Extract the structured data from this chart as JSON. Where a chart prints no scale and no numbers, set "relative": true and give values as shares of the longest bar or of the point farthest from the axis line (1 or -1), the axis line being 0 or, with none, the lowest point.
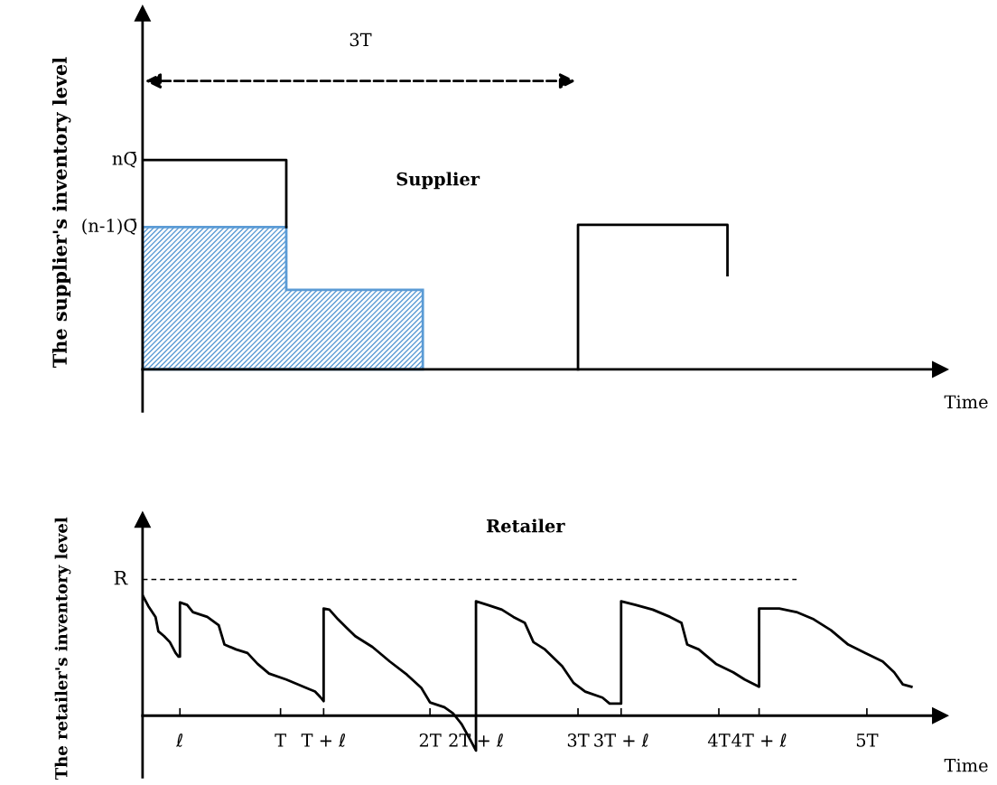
{
  "chart_data": [
    {
      "type": "line",
      "title": "Supplier",
      "ylabel": "The supplier's inventory level",
      "xlabel": "Time",
      "relative": true,
      "tick_labels": false,
      "xlim": [
        0,
        5.55
      ],
      "xticks": [
        {
          "value": 0.26,
          "label": null
        },
        {
          "value": 0.96,
          "label": null
        },
        {
          "value": 1.26,
          "label": null
        },
        {
          "value": 2.0,
          "label": null
        },
        {
          "value": 2.32,
          "label": null
        },
        {
          "value": 3.03,
          "label": null
        },
        {
          "value": 3.33,
          "label": null
        },
        {
          "value": 4.01,
          "label": null
        },
        {
          "value": 4.29,
          "label": null
        },
        {
          "value": 5.04,
          "label": null
        }
      ],
      "annotations": [
        "3T",
        {
          "text": "nQ̄",
          "x": 0,
          "y": 1.0
        },
        {
          "text": "(n-1)Q̄",
          "x": 0,
          "y": 0.68
        }
      ],
      "series": [
        {
          "type": "area",
          "color": "#5b9bd5",
          "x": [
            0,
            1,
            1,
            1.95,
            1.95
          ],
          "values": [
            0.68,
            0.68,
            0.38,
            0.38,
            0
          ]
        },
        {
          "type": "line",
          "color": "#000000",
          "x": [
            0,
            1,
            1
          ],
          "values": [
            1,
            1,
            0.68
          ]
        },
        {
          "type": "line",
          "color": "#000000",
          "x": [
            3.03,
            3.03,
            4.07,
            4.07
          ],
          "values": [
            0,
            0.69,
            0.69,
            0.45
          ]
        }
      ]
    },
    {
      "type": "line",
      "title": "Retailer",
      "ylabel": "The retailer's inventory level",
      "xlabel": "Time",
      "relative": true,
      "xlim": [
        0,
        5.55
      ],
      "xticks": [
        {
          "value": 0.26,
          "label": "ℓ"
        },
        {
          "value": 0.96,
          "label": "T"
        },
        {
          "value": 1.26,
          "label": "T + ℓ"
        },
        {
          "value": 2.0,
          "label": "2T"
        },
        {
          "value": 2.32,
          "label": "2T + ℓ"
        },
        {
          "value": 3.03,
          "label": "3T"
        },
        {
          "value": 3.33,
          "label": "3T + ℓ"
        },
        {
          "value": 4.01,
          "label": "4T"
        },
        {
          "value": 4.29,
          "label": "4T + ℓ"
        },
        {
          "value": 5.04,
          "label": "5T"
        }
      ],
      "ref_lines": [
        {
          "axis": "y",
          "value": 1.13,
          "label": "R",
          "color": "#000000",
          "line_style": "dashed"
        }
      ],
      "series": [
        {
          "color": "#000000",
          "x": [
            0,
            0.04,
            0.09,
            0.11,
            0.15,
            0.19,
            0.23,
            0.25,
            0.26,
            0.26,
            0.31,
            0.35,
            0.45,
            0.53,
            0.57,
            0.65,
            0.73,
            0.8,
            0.88,
            1.0,
            1.12,
            1.2,
            1.24,
            1.26,
            1.26,
            1.3,
            1.36,
            1.42,
            1.48,
            1.6,
            1.72,
            1.84,
            1.94,
            2.0,
            2.1,
            2.16,
            2.22,
            2.28,
            2.32,
            2.32,
            2.4,
            2.5,
            2.58,
            2.66,
            2.72,
            2.8,
            2.92,
            3.0,
            3.08,
            3.2,
            3.25,
            3.33,
            3.33,
            3.43,
            3.55,
            3.67,
            3.75,
            3.79,
            3.87,
            3.99,
            4.11,
            4.19,
            4.29,
            4.29,
            4.43,
            4.55,
            4.67,
            4.79,
            4.91,
            5.03,
            5.15,
            5.23,
            5.29,
            5.35
          ],
          "values": [
            1.0,
            0.91,
            0.82,
            0.7,
            0.66,
            0.61,
            0.52,
            0.49,
            0.49,
            0.94,
            0.92,
            0.86,
            0.82,
            0.75,
            0.59,
            0.55,
            0.52,
            0.43,
            0.35,
            0.3,
            0.24,
            0.2,
            0.15,
            0.12,
            0.89,
            0.88,
            0.8,
            0.73,
            0.66,
            0.57,
            0.45,
            0.34,
            0.23,
            0.11,
            0.07,
            0.02,
            -0.07,
            -0.2,
            -0.29,
            0.95,
            0.92,
            0.88,
            0.82,
            0.77,
            0.61,
            0.55,
            0.41,
            0.27,
            0.2,
            0.15,
            0.1,
            0.1,
            0.95,
            0.92,
            0.88,
            0.82,
            0.77,
            0.59,
            0.55,
            0.43,
            0.36,
            0.3,
            0.24,
            0.89,
            0.89,
            0.86,
            0.8,
            0.71,
            0.59,
            0.52,
            0.45,
            0.36,
            0.26,
            0.24
          ]
        }
      ]
    }
  ]
}
